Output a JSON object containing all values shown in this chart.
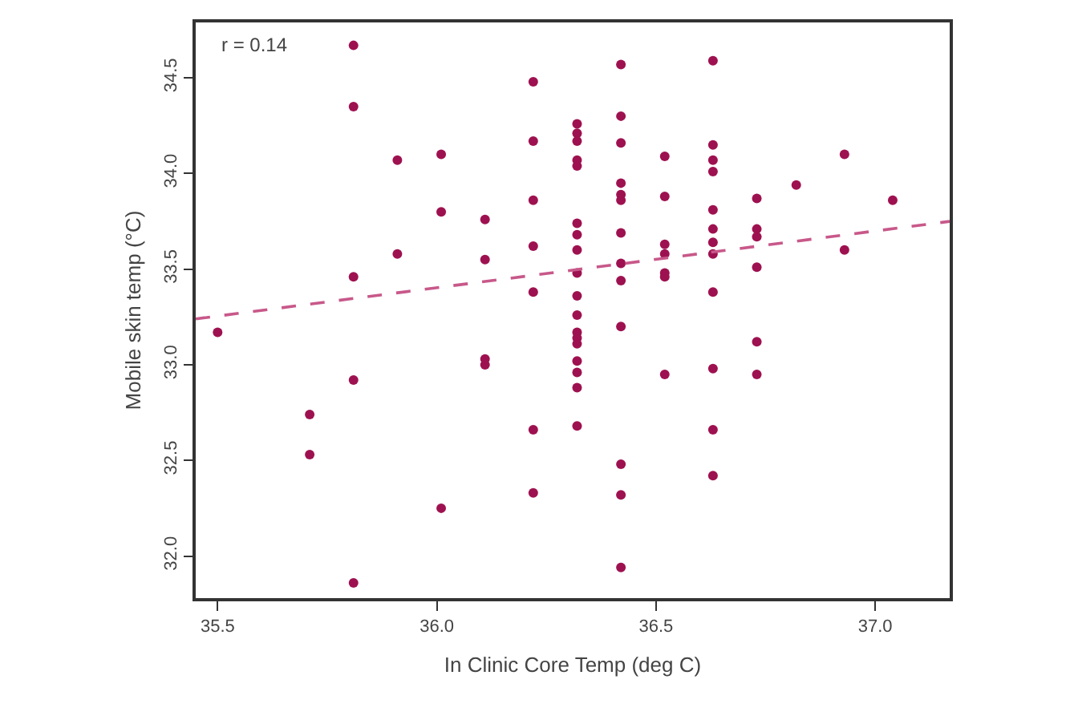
{
  "chart_data": {
    "type": "scatter",
    "xlabel": "In Clinic Core Temp (deg C)",
    "ylabel": "Mobile skin temp (°C)",
    "annotations": [
      "r = 0.14"
    ],
    "xlim": [
      35.45,
      37.17
    ],
    "ylim": [
      31.78,
      34.79
    ],
    "xticks": [
      35.5,
      {
        "value": 36,
        "label": "36.0"
      },
      36.5,
      {
        "value": 37,
        "label": "37.0"
      }
    ],
    "yticks": [
      {
        "value": 32,
        "label": "32.0"
      },
      32.5,
      {
        "value": 33,
        "label": "33.0"
      },
      33.5,
      {
        "value": 34,
        "label": "34.0"
      },
      34.5
    ],
    "series": [
      {
        "marker": "circle",
        "color": "#9e1150",
        "x": [
          35.5,
          35.71,
          35.71,
          35.81,
          35.81,
          35.81,
          35.81,
          35.81,
          35.91,
          35.91,
          36.01,
          36.01,
          36.01,
          36.11,
          36.11,
          36.11,
          36.11,
          36.22,
          36.22,
          36.22,
          36.22,
          36.22,
          36.22,
          36.22,
          36.32,
          36.32,
          36.32,
          36.32,
          36.32,
          36.32,
          36.32,
          36.32,
          36.32,
          36.32,
          36.32,
          36.32,
          36.32,
          36.32,
          36.32,
          36.32,
          36.32,
          36.32,
          36.42,
          36.42,
          36.42,
          36.42,
          36.42,
          36.42,
          36.42,
          36.42,
          36.42,
          36.42,
          36.42,
          36.42,
          36.42,
          36.52,
          36.52,
          36.52,
          36.52,
          36.52,
          36.52,
          36.52,
          36.63,
          36.63,
          36.63,
          36.63,
          36.63,
          36.63,
          36.63,
          36.63,
          36.63,
          36.63,
          36.63,
          36.63,
          36.73,
          36.73,
          36.73,
          36.73,
          36.73,
          36.73,
          36.82,
          36.93,
          36.93,
          37.04
        ],
        "values": [
          33.17,
          32.74,
          32.53,
          34.67,
          34.35,
          33.46,
          32.92,
          31.86,
          34.07,
          33.58,
          34.1,
          33.8,
          32.25,
          33.76,
          33.55,
          33.0,
          33.03,
          34.48,
          34.17,
          33.86,
          33.62,
          33.38,
          32.66,
          32.33,
          34.26,
          34.21,
          34.17,
          34.07,
          34.04,
          33.74,
          33.68,
          33.6,
          33.48,
          33.36,
          33.26,
          33.17,
          33.14,
          33.11,
          33.02,
          32.96,
          32.88,
          32.68,
          34.57,
          34.3,
          34.16,
          33.95,
          33.89,
          33.86,
          33.69,
          33.53,
          33.44,
          33.2,
          32.48,
          32.32,
          31.94,
          34.09,
          33.88,
          33.63,
          33.58,
          33.48,
          33.46,
          32.95,
          34.59,
          34.15,
          34.07,
          34.01,
          33.81,
          33.71,
          33.64,
          33.58,
          33.38,
          32.98,
          32.66,
          32.42,
          33.87,
          33.71,
          33.67,
          33.51,
          33.12,
          32.95,
          33.94,
          34.1,
          33.6,
          33.86
        ]
      },
      {
        "type": "line",
        "line_style": "dashed",
        "marker": "none",
        "color": "#c8588a",
        "x": [
          35.45,
          37.17
        ],
        "values": [
          33.24,
          33.75
        ]
      }
    ]
  }
}
